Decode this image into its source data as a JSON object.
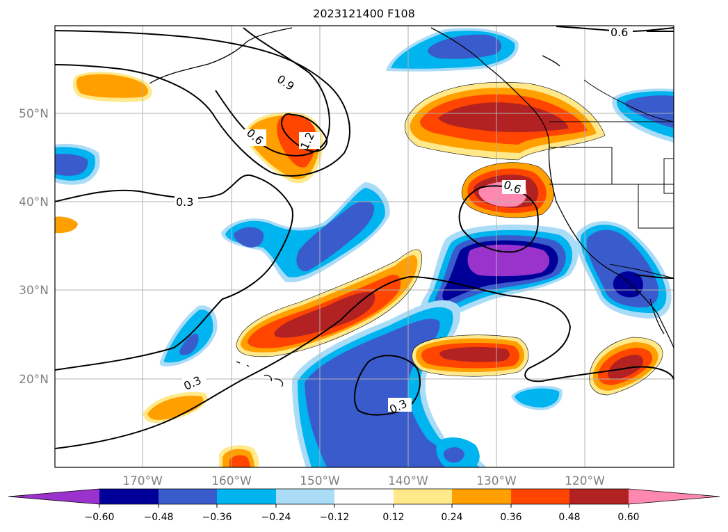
{
  "title": "2023121400 F108",
  "map": {
    "latitude_labels": [
      "50°N",
      "40°N",
      "30°N",
      "20°N"
    ],
    "longitude_labels": [
      "170°W",
      "160°W",
      "150°W",
      "140°W",
      "130°W",
      "120°W"
    ],
    "contour_labels": [
      "0.6",
      "0.9",
      "0.6",
      "1.2",
      "0.3",
      "0.6",
      "0.3",
      "0.3"
    ]
  },
  "colorbar": {
    "tick_labels": [
      "−0.60",
      "−0.48",
      "−0.36",
      "−0.24",
      "−0.12",
      "0.12",
      "0.24",
      "0.36",
      "0.48",
      "0.60"
    ],
    "colors": {
      "lt_m060": "#9933cc",
      "m060_m048": "#000099",
      "m048_m036": "#3a5bcc",
      "m036_m024": "#00b4f0",
      "m024_m012": "#aadcf8",
      "m012_012": "#ffffff",
      "p012_024": "#ffe98a",
      "p024_036": "#ffa000",
      "p036_048": "#ff4500",
      "p048_060": "#b22222",
      "gt_060": "#ff88b0"
    }
  }
}
